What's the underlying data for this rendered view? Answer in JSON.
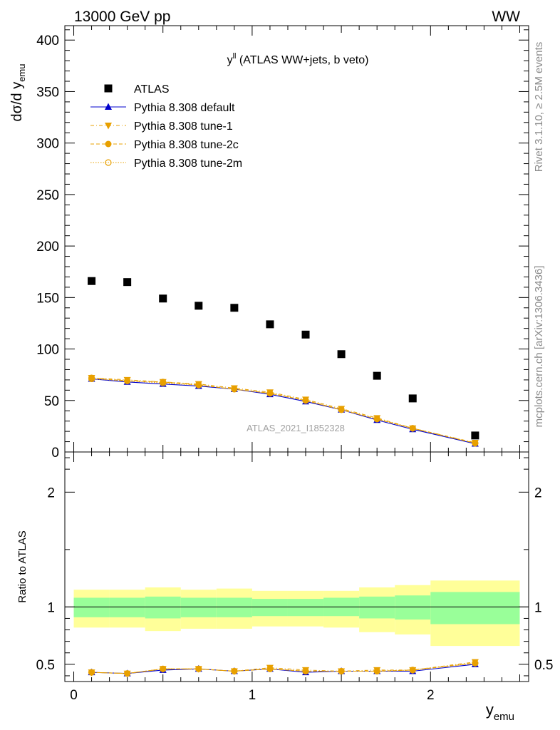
{
  "header": {
    "left": "13000 GeV pp",
    "right": "WW"
  },
  "side_labels": {
    "rivet": "Rivet 3.1.10, ≥ 2.5M events",
    "mcplots": "mcplots.cern.ch [arXiv:1306.3436]"
  },
  "watermark": "ATLAS_2021_I1852328",
  "colors": {
    "atlas": "#000000",
    "default": "#0000cc",
    "tunes": "#e8a000",
    "band_inner": "#99ff99",
    "band_outer": "#ffff99"
  },
  "chart_data": [
    {
      "type": "scatter",
      "title_main": "y",
      "title_sup": "ll",
      "title_rest": " (ATLAS WW+jets, b veto)",
      "ylabel_main": "dσ/d y",
      "ylabel_sub": "emu",
      "ylim": [
        0,
        414
      ],
      "yticks": [
        0,
        50,
        100,
        150,
        200,
        250,
        300,
        350,
        400
      ],
      "x": [
        0.1,
        0.3,
        0.5,
        0.7,
        0.9,
        1.1,
        1.3,
        1.5,
        1.7,
        1.9,
        2.25
      ],
      "series": [
        {
          "name": "ATLAS",
          "values": [
            166,
            165,
            149,
            142,
            140,
            124,
            114,
            95,
            74,
            52,
            16
          ]
        },
        {
          "name": "Pythia 8.308 default",
          "values": [
            71,
            68,
            66,
            64,
            61,
            56,
            49,
            41,
            31,
            22,
            8
          ]
        },
        {
          "name": "Pythia 8.308 tune-1",
          "values": [
            72,
            70,
            68,
            66,
            62,
            58,
            51,
            42,
            33,
            23,
            9
          ]
        },
        {
          "name": "Pythia 8.308 tune-2c",
          "values": [
            72,
            69,
            68,
            65,
            61,
            57,
            50,
            41,
            32,
            23,
            8.5
          ]
        },
        {
          "name": "Pythia 8.308 tune-2m",
          "values": [
            71,
            69,
            67,
            65,
            61,
            57,
            50,
            41,
            32,
            23,
            8.5
          ]
        }
      ]
    },
    {
      "type": "line",
      "ylabel": "Ratio to ATLAS",
      "xlabel_main": "y",
      "xlabel_sub": "emu",
      "xlim": [
        -0.05,
        2.55
      ],
      "xticks": [
        0,
        1,
        2
      ],
      "ylim": [
        0.35,
        2.35
      ],
      "yticks": [
        0.5,
        1,
        2
      ],
      "bins": [
        [
          0,
          0.2
        ],
        [
          0.2,
          0.4
        ],
        [
          0.4,
          0.6
        ],
        [
          0.6,
          0.8
        ],
        [
          0.8,
          1.0
        ],
        [
          1.0,
          1.2
        ],
        [
          1.2,
          1.4
        ],
        [
          1.4,
          1.6
        ],
        [
          1.6,
          1.8
        ],
        [
          1.8,
          2.0
        ],
        [
          2.0,
          2.5
        ]
      ],
      "band_inner": [
        [
          0.91,
          1.08
        ],
        [
          0.91,
          1.08
        ],
        [
          0.9,
          1.09
        ],
        [
          0.91,
          1.08
        ],
        [
          0.91,
          1.08
        ],
        [
          0.92,
          1.07
        ],
        [
          0.92,
          1.07
        ],
        [
          0.92,
          1.08
        ],
        [
          0.9,
          1.09
        ],
        [
          0.89,
          1.1
        ],
        [
          0.85,
          1.13
        ]
      ],
      "band_outer": [
        [
          0.82,
          1.15
        ],
        [
          0.82,
          1.15
        ],
        [
          0.79,
          1.17
        ],
        [
          0.81,
          1.15
        ],
        [
          0.81,
          1.16
        ],
        [
          0.83,
          1.14
        ],
        [
          0.83,
          1.14
        ],
        [
          0.82,
          1.14
        ],
        [
          0.78,
          1.17
        ],
        [
          0.76,
          1.19
        ],
        [
          0.66,
          1.23
        ]
      ],
      "x": [
        0.1,
        0.3,
        0.5,
        0.7,
        0.9,
        1.1,
        1.3,
        1.5,
        1.7,
        1.9,
        2.25
      ],
      "series": [
        {
          "name": "Pythia 8.308 default",
          "values": [
            0.43,
            0.42,
            0.45,
            0.46,
            0.44,
            0.46,
            0.43,
            0.44,
            0.44,
            0.44,
            0.5
          ]
        },
        {
          "name": "Pythia 8.308 tune-1",
          "values": [
            0.43,
            0.42,
            0.46,
            0.46,
            0.44,
            0.47,
            0.45,
            0.44,
            0.45,
            0.45,
            0.52
          ]
        },
        {
          "name": "Pythia 8.308 tune-2c",
          "values": [
            0.43,
            0.42,
            0.46,
            0.46,
            0.44,
            0.46,
            0.44,
            0.44,
            0.44,
            0.45,
            0.51
          ]
        },
        {
          "name": "Pythia 8.308 tune-2m",
          "values": [
            0.43,
            0.42,
            0.46,
            0.46,
            0.44,
            0.46,
            0.44,
            0.44,
            0.44,
            0.45,
            0.51
          ]
        }
      ]
    }
  ]
}
